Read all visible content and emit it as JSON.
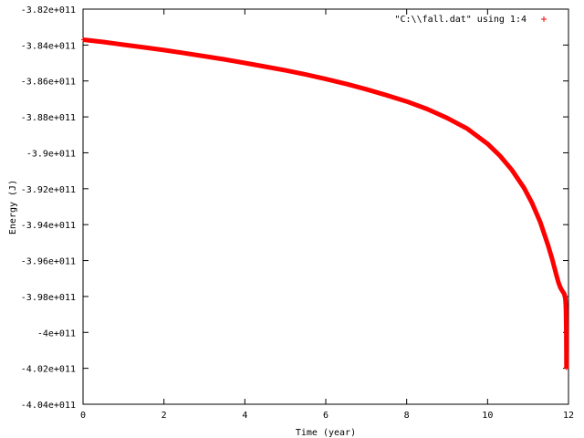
{
  "chart_data": {
    "type": "scatter",
    "xlabel": "Time (year)",
    "ylabel": "Energy (J)",
    "xlim": [
      0,
      12
    ],
    "ylim": [
      -404000000000.0,
      -382000000000.0
    ],
    "x_ticks": [
      0,
      2,
      4,
      6,
      8,
      10,
      12
    ],
    "x_tick_labels": [
      "0",
      "2",
      "4",
      "6",
      "8",
      "10",
      "12"
    ],
    "y_ticks": [
      -382000000000.0,
      -384000000000.0,
      -386000000000.0,
      -388000000000.0,
      -390000000000.0,
      -392000000000.0,
      -394000000000.0,
      -396000000000.0,
      -398000000000.0,
      -400000000000.0,
      -402000000000.0,
      -404000000000.0
    ],
    "y_tick_labels": [
      "-3.82e+011",
      "-3.84e+011",
      "-3.86e+011",
      "-3.88e+011",
      "-3.9e+011",
      "-3.92e+011",
      "-3.94e+011",
      "-3.96e+011",
      "-3.98e+011",
      "-4e+011",
      "-4.02e+011",
      "-4.04e+011"
    ],
    "legend_position": "top-right",
    "grid": false,
    "series": [
      {
        "name": "\"C:\\\\fall.dat\" using 1:4",
        "color": "#ff0000",
        "marker": "plus",
        "x": [
          0,
          0.5,
          1,
          1.5,
          2,
          2.5,
          3,
          3.5,
          4,
          4.5,
          5,
          5.5,
          6,
          6.5,
          7,
          7.5,
          8,
          8.5,
          9,
          9.5,
          10,
          10.3,
          10.6,
          10.9,
          11.1,
          11.3,
          11.5,
          11.6,
          11.7,
          11.75,
          11.8,
          11.85,
          11.88,
          11.9,
          11.91,
          11.92,
          11.925,
          11.93,
          11.935,
          11.94,
          11.945,
          11.95
        ],
        "y": [
          -383700000000.0,
          -383830000000.0,
          -383980000000.0,
          -384130000000.0,
          -384280000000.0,
          -384450000000.0,
          -384620000000.0,
          -384800000000.0,
          -385000000000.0,
          -385200000000.0,
          -385410000000.0,
          -385640000000.0,
          -385890000000.0,
          -386160000000.0,
          -386460000000.0,
          -386790000000.0,
          -387140000000.0,
          -387560000000.0,
          -388060000000.0,
          -388660000000.0,
          -389500000000.0,
          -390150000000.0,
          -390950000000.0,
          -391950000000.0,
          -392800000000.0,
          -393850000000.0,
          -395180000000.0,
          -395950000000.0,
          -396800000000.0,
          -397200000000.0,
          -397500000000.0,
          -397700000000.0,
          -397800000000.0,
          -397900000000.0,
          -398000000000.0,
          -398100000000.0,
          -398200000000.0,
          -398350000000.0,
          -398550000000.0,
          -399000000000.0,
          -400000000000.0,
          -402000000000.0
        ]
      }
    ]
  }
}
